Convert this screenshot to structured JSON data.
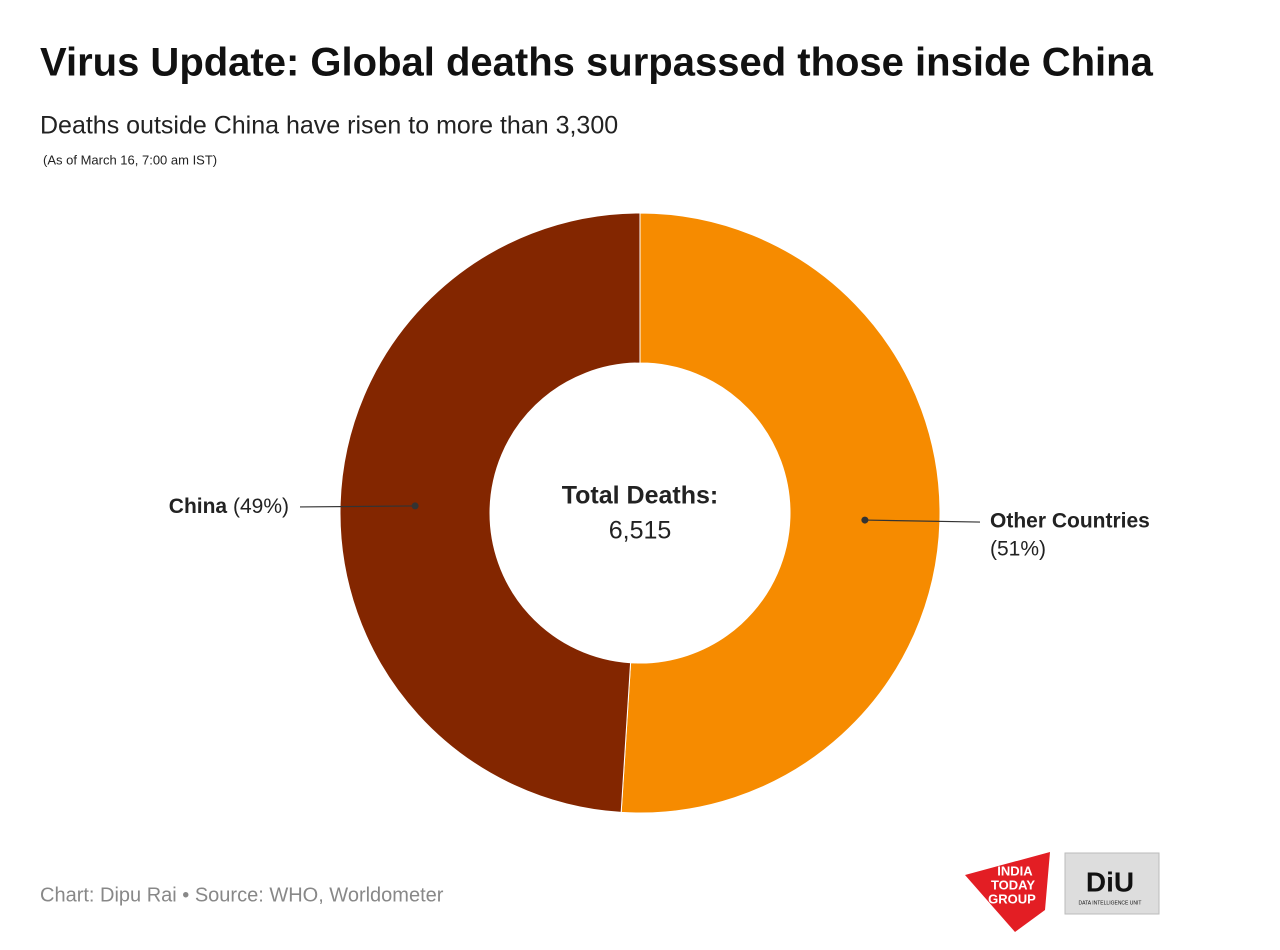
{
  "chart_data": {
    "type": "pie",
    "title": "Virus Update: Global deaths surpassed those inside China",
    "subtitle": "Deaths outside China have risen to more than 3,300",
    "note": "(As of March 16, 7:00 am IST)",
    "categories": [
      "Other Countries",
      "China"
    ],
    "values": [
      51,
      49
    ],
    "value_labels": [
      "(51%)",
      "(49%)"
    ],
    "colors": [
      "#f68b00",
      "#832600"
    ],
    "donut": true,
    "center_title": "Total Deaths:",
    "total": 6515,
    "total_label": "6,515",
    "source": "Chart: Dipu Rai • Source: WHO, Worldometer",
    "logos": {
      "india_today": [
        "INDIA",
        "TODAY",
        "GROUP"
      ],
      "diu": "DiU",
      "diu_sub": "DATA INTELLIGENCE UNIT"
    }
  }
}
